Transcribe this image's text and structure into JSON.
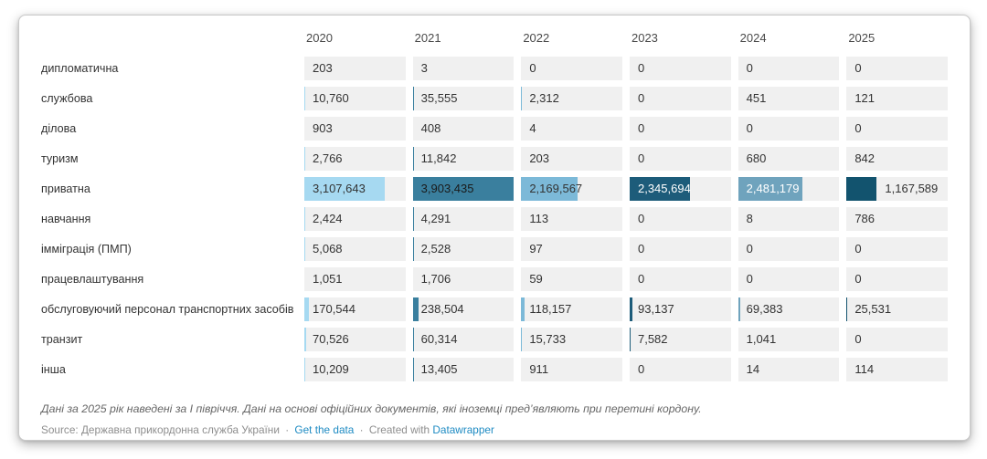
{
  "chart_data": {
    "type": "table",
    "title": "",
    "columns": [
      "2020",
      "2021",
      "2022",
      "2023",
      "2024",
      "2025"
    ],
    "rows": [
      {
        "label": "дипломатична",
        "values": [
          203,
          3,
          0,
          0,
          0,
          0
        ],
        "display": [
          "203",
          "3",
          "0",
          "0",
          "0",
          "0"
        ]
      },
      {
        "label": "службова",
        "values": [
          10760,
          35555,
          2312,
          0,
          451,
          121
        ],
        "display": [
          "10,760",
          "35,555",
          "2,312",
          "0",
          "451",
          "121"
        ]
      },
      {
        "label": "ділова",
        "values": [
          903,
          408,
          4,
          0,
          0,
          0
        ],
        "display": [
          "903",
          "408",
          "4",
          "0",
          "0",
          "0"
        ]
      },
      {
        "label": "туризм",
        "values": [
          2766,
          11842,
          203,
          0,
          680,
          842
        ],
        "display": [
          "2,766",
          "11,842",
          "203",
          "0",
          "680",
          "842"
        ]
      },
      {
        "label": "приватна",
        "values": [
          3107643,
          3903435,
          2169567,
          2345694,
          2481179,
          1167589
        ],
        "display": [
          "3,107,643",
          "3,903,435",
          "2,169,567",
          "2,345,694",
          "2,481,179",
          "1,167,589"
        ]
      },
      {
        "label": "навчання",
        "values": [
          2424,
          4291,
          113,
          0,
          8,
          786
        ],
        "display": [
          "2,424",
          "4,291",
          "113",
          "0",
          "8",
          "786"
        ]
      },
      {
        "label": "імміграція (ПМП)",
        "values": [
          5068,
          2528,
          97,
          0,
          0,
          0
        ],
        "display": [
          "5,068",
          "2,528",
          "97",
          "0",
          "0",
          "0"
        ]
      },
      {
        "label": "працевлаштування",
        "values": [
          1051,
          1706,
          59,
          0,
          0,
          0
        ],
        "display": [
          "1,051",
          "1,706",
          "59",
          "0",
          "0",
          "0"
        ]
      },
      {
        "label": "обслуговуючий персонал транспортних засобів",
        "values": [
          170544,
          238504,
          118157,
          93137,
          69383,
          25531
        ],
        "display": [
          "170,544",
          "238,504",
          "118,157",
          "93,137",
          "69,383",
          "25,531"
        ]
      },
      {
        "label": "транзит",
        "values": [
          70526,
          60314,
          15733,
          7582,
          1041,
          0
        ],
        "display": [
          "70,526",
          "60,314",
          "15,733",
          "7,582",
          "1,041",
          "0"
        ]
      },
      {
        "label": "інша",
        "values": [
          10209,
          13405,
          911,
          0,
          14,
          114
        ],
        "display": [
          "10,209",
          "13,405",
          "911",
          "0",
          "14",
          "114"
        ]
      }
    ],
    "max_value": 3903435,
    "column_bar_colors": [
      "#a6d9f1",
      "#3a7f9e",
      "#7cb9d8",
      "#1d5c7a",
      "#6fa3bd",
      "#12536e"
    ],
    "on_bar_label_colors": [
      "#333333",
      "#1a1a1a",
      "#333333",
      "#ffffff",
      "#ffffff",
      "#333333"
    ],
    "cell_background": "#f0f0f0",
    "legend_position": "none",
    "grid": "off"
  },
  "footer": {
    "note": "Дані за 2025 рік наведені за І півріччя. Дані на основі офіційних документів, які іноземці пред’являють при перетині кордону.",
    "source_prefix": "Source:",
    "source_name": "Державна прикордонна служба України",
    "separator": "·",
    "get_data_label": "Get the data",
    "created_with_label": "Created with",
    "datawrapper_label": "Datawrapper"
  },
  "colors": {
    "link_blue": "#1e8bc3",
    "text_dark": "#333333",
    "text_muted": "#8e8e8e",
    "note_gray": "#666666"
  }
}
